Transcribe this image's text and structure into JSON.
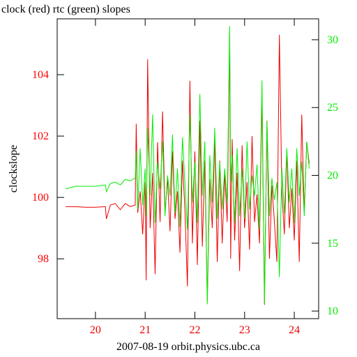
{
  "chart_data": {
    "type": "line",
    "title": "clock (red) rtc (green) slopes",
    "y_label": "clockslope",
    "x_label": "2007-08-19 orbit.physics.ubc.ca",
    "xlim": [
      19.23,
      24.49
    ],
    "xticks": [
      20,
      21,
      22,
      23,
      24
    ],
    "ylim": [
      96.05,
      105.82
    ],
    "yticks": [
      98,
      100,
      102,
      104
    ],
    "ytick_color": "#ff0000",
    "y2lim": [
      9.44,
      31.54
    ],
    "y2ticks": [
      10,
      15,
      20,
      25,
      30
    ],
    "y2tick_color": "#00ee00",
    "x": [
      19.4,
      19.6,
      19.8,
      20.0,
      20.2,
      20.22,
      20.3,
      20.4,
      20.5,
      20.6,
      20.7,
      20.8,
      20.82,
      20.85,
      20.9,
      20.95,
      21.0,
      21.02,
      21.05,
      21.1,
      21.15,
      21.2,
      21.25,
      21.3,
      21.35,
      21.4,
      21.45,
      21.5,
      21.55,
      21.6,
      21.65,
      21.7,
      21.75,
      21.8,
      21.85,
      21.9,
      21.95,
      22.0,
      22.05,
      22.1,
      22.15,
      22.2,
      22.25,
      22.3,
      22.35,
      22.4,
      22.45,
      22.5,
      22.55,
      22.6,
      22.65,
      22.7,
      22.72,
      22.75,
      22.8,
      22.85,
      22.9,
      22.95,
      23.0,
      23.05,
      23.1,
      23.15,
      23.2,
      23.25,
      23.3,
      23.35,
      23.4,
      23.45,
      23.5,
      23.55,
      23.6,
      23.65,
      23.7,
      23.75,
      23.8,
      23.85,
      23.9,
      23.95,
      24.0,
      24.05,
      24.1,
      24.15,
      24.2,
      24.25,
      24.3
    ],
    "series": [
      {
        "name": "clock",
        "color": "#ee0000",
        "axis": "y",
        "values": [
          99.7,
          99.7,
          99.68,
          99.68,
          99.7,
          99.3,
          99.75,
          99.8,
          99.6,
          99.8,
          99.7,
          99.75,
          102.4,
          99.5,
          100.2,
          98.8,
          100.5,
          97.3,
          104.5,
          99.0,
          100.8,
          97.5,
          101.8,
          99.2,
          102.8,
          99.5,
          100.6,
          98.9,
          101.5,
          99.3,
          100.2,
          98.2,
          101.2,
          99.6,
          97.1,
          103.8,
          98.5,
          101.5,
          97.8,
          102.5,
          98.4,
          101.2,
          96.6,
          100.6,
          99.0,
          102.0,
          97.9,
          101.2,
          98.5,
          100.8,
          99.2,
          105.3,
          98.0,
          101.9,
          98.6,
          100.8,
          97.6,
          101.7,
          99.0,
          100.5,
          98.3,
          102.0,
          99.2,
          100.1,
          98.5,
          103.3,
          96.5,
          102.5,
          98.0,
          100.4,
          99.2,
          97.9,
          105.3,
          100.2,
          98.8,
          101.5,
          99.0,
          100.3,
          98.6,
          101.2,
          97.9,
          102.7,
          99.5,
          101.8,
          101.1
        ]
      },
      {
        "name": "rtc",
        "color": "#00ee00",
        "axis": "y2",
        "values": [
          19.0,
          19.2,
          19.2,
          19.2,
          19.3,
          18.8,
          19.4,
          19.5,
          19.3,
          19.7,
          19.6,
          19.8,
          21.8,
          17.5,
          22.0,
          17.8,
          20.5,
          17.0,
          23.5,
          18.5,
          24.5,
          16.5,
          21.0,
          19.0,
          22.5,
          17.0,
          20.0,
          18.5,
          23.0,
          17.2,
          20.5,
          16.2,
          22.8,
          19.5,
          16.0,
          24.5,
          18.0,
          21.0,
          16.5,
          26.0,
          18.5,
          22.5,
          10.5,
          21.5,
          18.0,
          23.5,
          16.8,
          21.0,
          17.5,
          20.5,
          18.0,
          31.0,
          19.5,
          21.5,
          16.5,
          22.0,
          17.0,
          20.5,
          16.8,
          22.5,
          17.5,
          20.0,
          18.5,
          20.8,
          16.0,
          27.0,
          10.5,
          24.0,
          17.0,
          19.8,
          18.2,
          19.5,
          12.5,
          20.5,
          17.2,
          22.0,
          18.0,
          20.5,
          16.5,
          22.0,
          18.5,
          21.0,
          17.0,
          22.5,
          20.5
        ]
      }
    ]
  }
}
